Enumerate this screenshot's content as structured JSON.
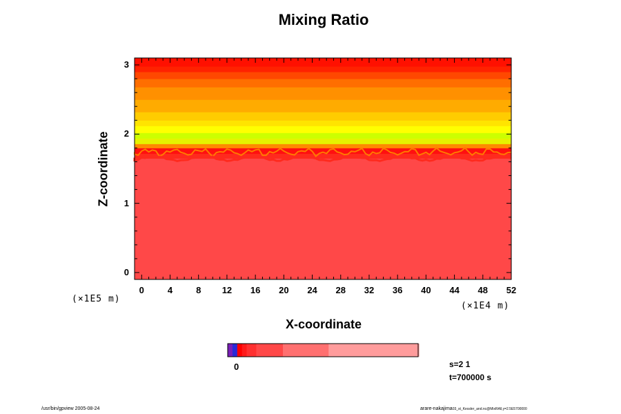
{
  "chart_data": {
    "type": "heatmap",
    "title": "Mixing Ratio",
    "xlabel": "X-coordinate",
    "ylabel": "Z-coordinate",
    "x_unit": "(×1E5 m)",
    "x_unit_alt": "(×1E4 m)",
    "xlim": [
      -1,
      52
    ],
    "ylim": [
      -0.1,
      3.1
    ],
    "xticks": [
      "0",
      "4",
      "8",
      "12",
      "16",
      "20",
      "24",
      "28",
      "32",
      "36",
      "40",
      "44",
      "48",
      "52"
    ],
    "yticks": [
      "0",
      "1",
      "2",
      "3"
    ],
    "bands": [
      {
        "z0": -0.1,
        "z1": 1.65,
        "color": "#ff4848"
      },
      {
        "z0": 1.65,
        "z1": 1.72,
        "color": "#ff2a1e"
      },
      {
        "z0": 1.72,
        "z1": 1.8,
        "color": "#ff1010"
      },
      {
        "z0": 1.8,
        "z1": 1.86,
        "color": "#ff8a00"
      },
      {
        "z0": 1.86,
        "z1": 1.94,
        "color": "#e6f200"
      },
      {
        "z0": 1.94,
        "z1": 2.02,
        "color": "#ccff00"
      },
      {
        "z0": 2.02,
        "z1": 2.12,
        "color": "#ffff00"
      },
      {
        "z0": 2.12,
        "z1": 2.2,
        "color": "#ffe400"
      },
      {
        "z0": 2.2,
        "z1": 2.32,
        "color": "#ffcc00"
      },
      {
        "z0": 2.32,
        "z1": 2.5,
        "color": "#ffab00"
      },
      {
        "z0": 2.5,
        "z1": 2.68,
        "color": "#ff9000"
      },
      {
        "z0": 2.68,
        "z1": 2.8,
        "color": "#ff6e00"
      },
      {
        "z0": 2.8,
        "z1": 2.9,
        "color": "#ff4800"
      },
      {
        "z0": 2.9,
        "z1": 2.98,
        "color": "#ff2200"
      },
      {
        "z0": 2.98,
        "z1": 3.1,
        "color": "#ff1000"
      }
    ],
    "grid": false
  },
  "colorbar": {
    "label_zero": "0",
    "segments": [
      {
        "frac": 0.025,
        "color": "#7a1fb8"
      },
      {
        "frac": 0.025,
        "color": "#2a2ad8"
      },
      {
        "frac": 0.025,
        "color": "#ff0000"
      },
      {
        "frac": 0.025,
        "color": "#ff1a1a"
      },
      {
        "frac": 0.05,
        "color": "#ff3030"
      },
      {
        "frac": 0.14,
        "color": "#ff4848"
      },
      {
        "frac": 0.24,
        "color": "#ff7070"
      },
      {
        "frac": 0.475,
        "color": "#ff9c9c"
      }
    ]
  },
  "info": {
    "s_text": "s=2 1",
    "t_text": "t=700000 s"
  },
  "footer": {
    "left": "/usr/bin/gpview 2005-08-24",
    "right_main": "arare-nakajima",
    "right_small": "03_st_Kessler_and.nc@MixRAll,y=2.5E5700000"
  }
}
